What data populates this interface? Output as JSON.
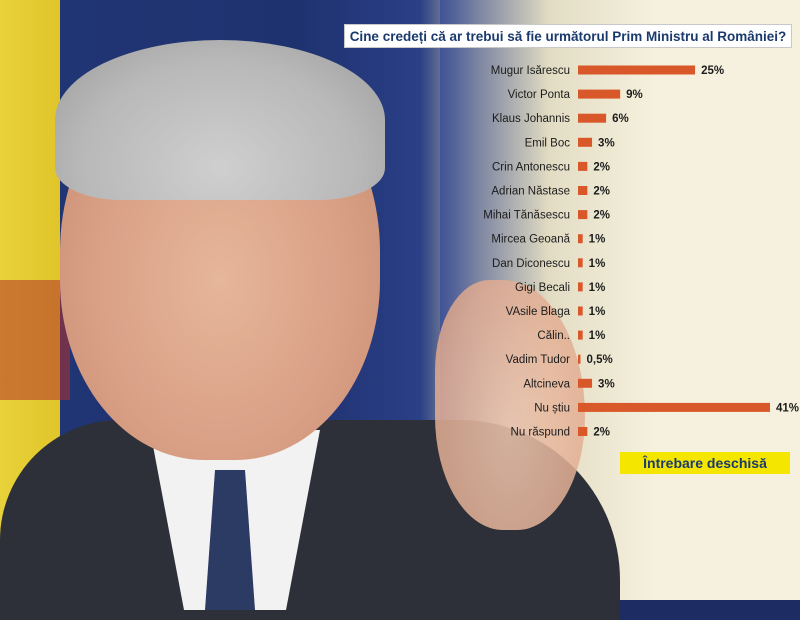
{
  "title": "Cine credeți că ar trebui să fie următorul Prim Ministru al României?",
  "note": "Întrebare deschisă",
  "colors": {
    "bar": "#d9582a",
    "title_text": "#1a3a6e",
    "note_bg": "#f5e600"
  },
  "chart_data": {
    "type": "bar",
    "orientation": "horizontal",
    "title": "Cine credeți că ar trebui să fie următorul Prim Ministru al României?",
    "categories": [
      "Mugur Isărescu",
      "Victor Ponta",
      "Klaus Johannis",
      "Emil Boc",
      "Crin Antonescu",
      "Adrian Năstase",
      "Mihai Tănăsescu",
      "Mircea Geoană",
      "Dan Diconescu",
      "Gigi Becali",
      "VAsile Blaga",
      "Călin..",
      "Vadim Tudor",
      "Altcineva",
      "Nu știu",
      "Nu răspund"
    ],
    "values": [
      25,
      9,
      6,
      3,
      2,
      2,
      2,
      1,
      1,
      1,
      1,
      1,
      0.5,
      3,
      41,
      2
    ],
    "value_labels": [
      "25%",
      "9%",
      "6%",
      "3%",
      "2%",
      "2%",
      "2%",
      "1%",
      "1%",
      "1%",
      "1%",
      "1%",
      "0,5%",
      "3%",
      "41%",
      "2%"
    ],
    "xlim": [
      0,
      41
    ],
    "grid": false,
    "legend": "none"
  }
}
